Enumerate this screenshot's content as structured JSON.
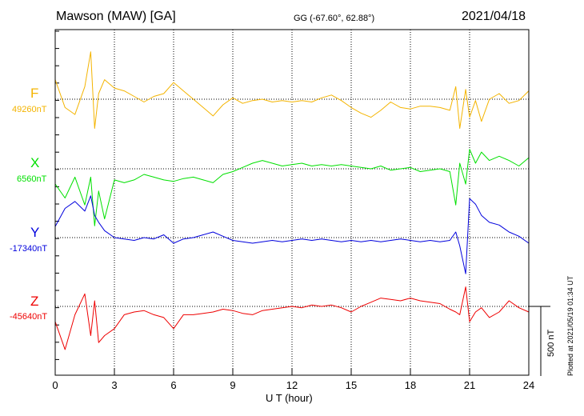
{
  "header": {
    "title": "Mawson (MAW)  [GA]",
    "coords": "GG (-67.60°,  62.88°)",
    "date": "2021/04/18"
  },
  "plotted_note": "Plotted at 2021/05/19 01:34 UT",
  "scale_bar": {
    "label": "500 nT",
    "value_nT": 500
  },
  "colors": {
    "F": "#f4b400",
    "X": "#00e000",
    "Y": "#0000dd",
    "Z": "#ee0000"
  },
  "chart_data": {
    "type": "line",
    "title": "Mawson (MAW)  [GA]",
    "xlabel": "U T (hour)",
    "ylabel": "",
    "xlim": [
      0,
      24
    ],
    "x_ticks": [
      0,
      3,
      6,
      9,
      12,
      15,
      18,
      21,
      24
    ],
    "x_tick_labels": [
      "0",
      "3",
      "6",
      "9",
      "12",
      "15",
      "18",
      "21",
      "24"
    ],
    "grid": true,
    "units": "nT",
    "series": [
      {
        "name": "F",
        "baseline_label": "49260nT",
        "baseline_nT": 49260,
        "x": [
          0,
          0.5,
          1,
          1.5,
          1.8,
          2,
          2.2,
          2.5,
          3,
          3.5,
          4,
          4.5,
          5,
          5.5,
          6,
          6.5,
          7,
          7.5,
          8,
          8.5,
          9,
          9.5,
          10,
          10.5,
          11,
          11.5,
          12,
          12.5,
          13,
          13.5,
          14,
          14.5,
          15,
          15.5,
          16,
          16.5,
          17,
          17.5,
          18,
          18.5,
          19,
          19.5,
          20,
          20.3,
          20.5,
          20.8,
          21,
          21.3,
          21.6,
          22,
          22.5,
          23,
          23.5,
          24
        ],
        "values": [
          49400,
          49200,
          49150,
          49350,
          49600,
          49050,
          49300,
          49400,
          49340,
          49320,
          49280,
          49240,
          49280,
          49300,
          49380,
          49320,
          49260,
          49200,
          49140,
          49220,
          49270,
          49230,
          49250,
          49260,
          49240,
          49250,
          49240,
          49250,
          49240,
          49270,
          49290,
          49250,
          49200,
          49160,
          49130,
          49180,
          49240,
          49200,
          49190,
          49210,
          49210,
          49200,
          49180,
          49350,
          49050,
          49330,
          49130,
          49250,
          49100,
          49260,
          49300,
          49230,
          49250,
          49320
        ]
      },
      {
        "name": "X",
        "baseline_label": "6560nT",
        "baseline_nT": 6560,
        "x": [
          0,
          0.5,
          1,
          1.5,
          1.8,
          2,
          2.2,
          2.5,
          3,
          3.5,
          4,
          4.5,
          5,
          5.5,
          6,
          6.5,
          7,
          7.5,
          8,
          8.5,
          9,
          9.5,
          10,
          10.5,
          11,
          11.5,
          12,
          12.5,
          13,
          13.5,
          14,
          14.5,
          15,
          15.5,
          16,
          16.5,
          17,
          17.5,
          18,
          18.5,
          19,
          19.5,
          20,
          20.3,
          20.5,
          20.8,
          21,
          21.3,
          21.6,
          22,
          22.5,
          23,
          23.5,
          24
        ],
        "values": [
          6450,
          6350,
          6500,
          6300,
          6500,
          6150,
          6400,
          6200,
          6480,
          6460,
          6480,
          6520,
          6500,
          6480,
          6470,
          6490,
          6500,
          6480,
          6460,
          6520,
          6540,
          6570,
          6600,
          6620,
          6600,
          6580,
          6590,
          6600,
          6580,
          6590,
          6580,
          6590,
          6580,
          6570,
          6560,
          6580,
          6550,
          6560,
          6570,
          6540,
          6550,
          6560,
          6540,
          6300,
          6600,
          6450,
          6700,
          6600,
          6680,
          6620,
          6650,
          6620,
          6580,
          6640
        ]
      },
      {
        "name": "Y",
        "baseline_label": "-17340nT",
        "baseline_nT": -17340,
        "x": [
          0,
          0.5,
          1,
          1.5,
          1.8,
          2,
          2.2,
          2.5,
          3,
          3.5,
          4,
          4.5,
          5,
          5.5,
          6,
          6.5,
          7,
          7.5,
          8,
          8.5,
          9,
          9.5,
          10,
          10.5,
          11,
          11.5,
          12,
          12.5,
          13,
          13.5,
          14,
          14.5,
          15,
          15.5,
          16,
          16.5,
          17,
          17.5,
          18,
          18.5,
          19,
          19.5,
          20,
          20.3,
          20.5,
          20.8,
          21,
          21.3,
          21.6,
          22,
          22.5,
          23,
          23.5,
          24
        ],
        "values": [
          -17260,
          -17130,
          -17080,
          -17150,
          -17040,
          -17180,
          -17230,
          -17290,
          -17340,
          -17350,
          -17360,
          -17340,
          -17350,
          -17320,
          -17380,
          -17350,
          -17340,
          -17320,
          -17300,
          -17330,
          -17360,
          -17370,
          -17380,
          -17370,
          -17360,
          -17370,
          -17360,
          -17350,
          -17360,
          -17350,
          -17360,
          -17370,
          -17360,
          -17370,
          -17360,
          -17370,
          -17360,
          -17350,
          -17360,
          -17370,
          -17360,
          -17370,
          -17360,
          -17300,
          -17400,
          -17600,
          -17060,
          -17100,
          -17180,
          -17230,
          -17250,
          -17300,
          -17330,
          -17380
        ]
      },
      {
        "name": "Z",
        "baseline_label": "-45640nT",
        "baseline_nT": -45640,
        "x": [
          0,
          0.5,
          1,
          1.5,
          1.8,
          2,
          2.2,
          2.5,
          3,
          3.5,
          4,
          4.5,
          5,
          5.5,
          6,
          6.5,
          7,
          7.5,
          8,
          8.5,
          9,
          9.5,
          10,
          10.5,
          11,
          11.5,
          12,
          12.5,
          13,
          13.5,
          14,
          14.5,
          15,
          15.5,
          16,
          16.5,
          17,
          17.5,
          18,
          18.5,
          19,
          19.5,
          20,
          20.3,
          20.5,
          20.8,
          21,
          21.3,
          21.6,
          22,
          22.5,
          23,
          23.5,
          24
        ],
        "values": [
          -45750,
          -45950,
          -45700,
          -45550,
          -45850,
          -45600,
          -45900,
          -45850,
          -45800,
          -45700,
          -45680,
          -45670,
          -45700,
          -45720,
          -45800,
          -45700,
          -45700,
          -45690,
          -45680,
          -45660,
          -45670,
          -45690,
          -45700,
          -45670,
          -45660,
          -45650,
          -45640,
          -45650,
          -45630,
          -45640,
          -45630,
          -45650,
          -45680,
          -45640,
          -45610,
          -45580,
          -45590,
          -45600,
          -45580,
          -45600,
          -45610,
          -45620,
          -45660,
          -45680,
          -45700,
          -45500,
          -45750,
          -45680,
          -45650,
          -45720,
          -45680,
          -45600,
          -45650,
          -45680
        ]
      }
    ]
  }
}
